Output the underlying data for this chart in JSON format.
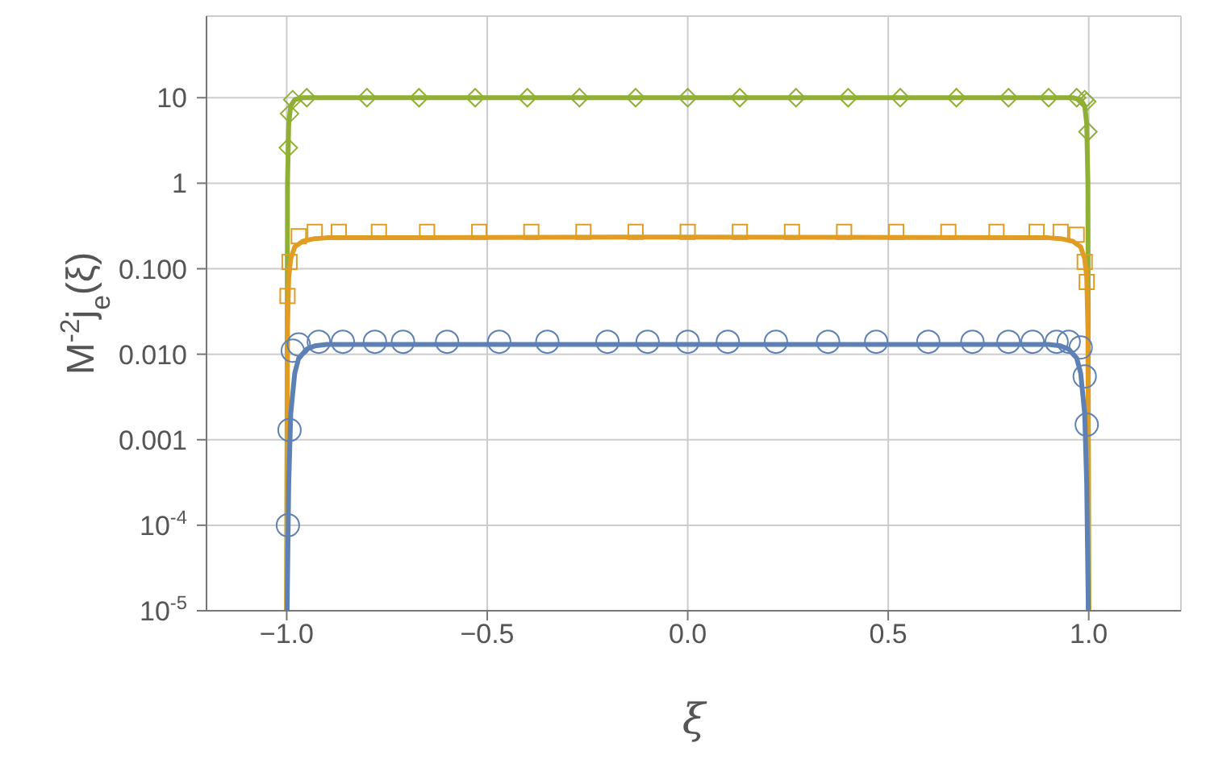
{
  "chart_data": {
    "type": "line",
    "xlabel": "ξ",
    "ylabel": "M$^{-2}$j$_{e}$(ξ)",
    "log": "y",
    "grid": true,
    "xlim": [
      -1.2,
      1.23
    ],
    "xticks": [
      {
        "value": -1,
        "label": "−1.0"
      },
      {
        "value": -0.5,
        "label": "−0.5"
      },
      {
        "value": 0,
        "label": "0.0"
      },
      {
        "value": 0.5,
        "label": "0.5"
      },
      {
        "value": 1,
        "label": "1.0"
      }
    ],
    "ylim": [
      1e-05,
      90
    ],
    "yticks": [
      {
        "value": 1e-05,
        "label": "10$^{-5}$"
      },
      {
        "value": 0.0001,
        "label": "10$^{-4}$"
      },
      {
        "value": 0.001,
        "label": "0.001"
      },
      {
        "value": 0.01,
        "label": "0.010"
      },
      {
        "value": 0.1,
        "label": "0.100"
      },
      1,
      10
    ],
    "series": [
      {
        "color": "#8fb032",
        "marker": "none",
        "x": [
          -1,
          -0.998,
          -0.995,
          -0.99,
          -0.98,
          -0.96,
          -0.9,
          0,
          0.9,
          0.96,
          0.98,
          0.99,
          0.995,
          0.998,
          1
        ],
        "values": [
          1e-05,
          1,
          5,
          8,
          9.5,
          10,
          10,
          10,
          10,
          10,
          9.5,
          8,
          5,
          1,
          1e-05
        ]
      },
      {
        "color": "#e19c24",
        "marker": "none",
        "x": [
          -1,
          -0.998,
          -0.995,
          -0.99,
          -0.98,
          -0.96,
          -0.93,
          -0.9,
          0,
          0.9,
          0.93,
          0.96,
          0.98,
          0.99,
          0.995,
          0.998,
          1
        ],
        "values": [
          1e-05,
          0.02,
          0.08,
          0.13,
          0.18,
          0.21,
          0.225,
          0.23,
          0.235,
          0.23,
          0.225,
          0.21,
          0.18,
          0.13,
          0.08,
          0.02,
          1e-05
        ]
      },
      {
        "color": "#5e81b5",
        "marker": "none",
        "x": [
          -0.999,
          -0.995,
          -0.99,
          -0.98,
          -0.97,
          -0.95,
          -0.93,
          -0.9,
          0,
          0.9,
          0.93,
          0.95,
          0.97,
          0.98,
          0.99,
          0.995,
          0.999
        ],
        "values": [
          1e-05,
          0.0003,
          0.002,
          0.006,
          0.009,
          0.0115,
          0.0125,
          0.013,
          0.013,
          0.013,
          0.0125,
          0.0115,
          0.009,
          0.006,
          0.002,
          0.0003,
          1e-05
        ]
      },
      {
        "type": "scatter",
        "color": "#8fb032",
        "marker": "diamond",
        "x": [
          -0.996,
          -0.993,
          -0.985,
          -0.95,
          -0.8,
          -0.67,
          -0.53,
          -0.4,
          -0.27,
          -0.13,
          0,
          0.13,
          0.27,
          0.4,
          0.53,
          0.67,
          0.8,
          0.9,
          0.97,
          0.99,
          0.995,
          0.998
        ],
        "values": [
          2.6,
          6.5,
          9.5,
          10,
          10,
          10,
          10,
          10,
          10,
          10,
          10,
          10,
          10,
          10,
          10,
          10,
          10,
          10,
          10,
          9.5,
          9,
          4
        ]
      },
      {
        "type": "scatter",
        "color": "#e19c24",
        "marker": "square",
        "x": [
          -0.998,
          -0.993,
          -0.97,
          -0.93,
          -0.87,
          -0.77,
          -0.65,
          -0.52,
          -0.39,
          -0.26,
          -0.13,
          0,
          0.13,
          0.26,
          0.39,
          0.52,
          0.65,
          0.77,
          0.87,
          0.93,
          0.97,
          0.99,
          0.995
        ],
        "values": [
          0.048,
          0.12,
          0.24,
          0.27,
          0.27,
          0.27,
          0.27,
          0.27,
          0.27,
          0.27,
          0.27,
          0.27,
          0.27,
          0.27,
          0.27,
          0.27,
          0.27,
          0.27,
          0.27,
          0.27,
          0.25,
          0.12,
          0.07
        ]
      },
      {
        "type": "scatter",
        "color": "#5e81b5",
        "marker": "circle",
        "x": [
          -0.997,
          -0.993,
          -0.985,
          -0.97,
          -0.92,
          -0.86,
          -0.78,
          -0.71,
          -0.6,
          -0.47,
          -0.35,
          -0.2,
          -0.1,
          0,
          0.1,
          0.22,
          0.35,
          0.47,
          0.6,
          0.71,
          0.8,
          0.86,
          0.92,
          0.95,
          0.98,
          0.99,
          0.995
        ],
        "values": [
          0.0001,
          0.0013,
          0.011,
          0.013,
          0.014,
          0.014,
          0.014,
          0.014,
          0.014,
          0.014,
          0.014,
          0.014,
          0.014,
          0.014,
          0.014,
          0.014,
          0.014,
          0.014,
          0.014,
          0.014,
          0.014,
          0.014,
          0.014,
          0.014,
          0.012,
          0.0055,
          0.0015
        ]
      }
    ]
  }
}
